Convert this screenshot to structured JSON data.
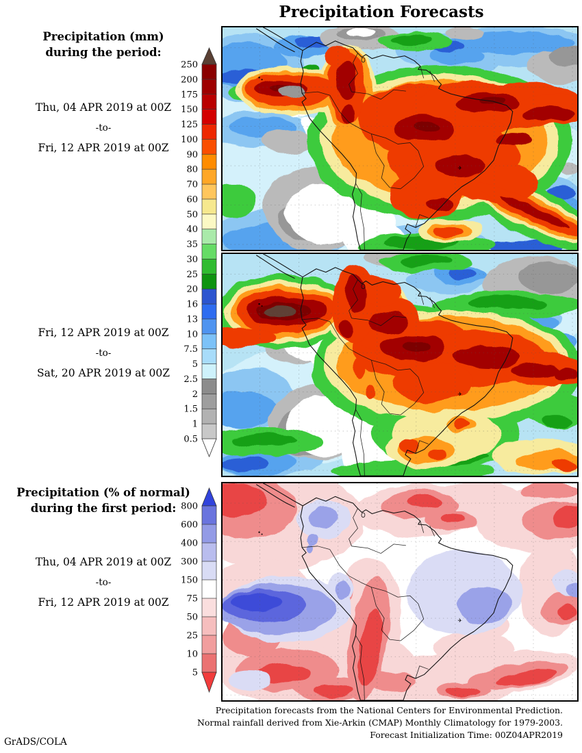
{
  "title": "Precipitation Forecasts",
  "credit": "GrADS/COLA",
  "panel1": {
    "label_line1": "Precipitation (mm)",
    "label_line2": "during the period:",
    "date_from": "Thu, 04 APR 2019 at 00Z",
    "date_sep": "-to-",
    "date_to": "Fri, 12 APR 2019 at 00Z"
  },
  "panel2": {
    "date_from": "Fri, 12 APR 2019 at 00Z",
    "date_sep": "-to-",
    "date_to": "Sat, 20 APR 2019 at 00Z"
  },
  "panel3": {
    "label_line1": "Precipitation (% of normal)",
    "label_line2": "during the first period:",
    "date_from": "Thu, 04 APR 2019 at 00Z",
    "date_sep": "-to-",
    "date_to": "Fri, 12 APR 2019 at 00Z"
  },
  "scale_mm": {
    "cap_top_color": "#5a4034",
    "cap_bottom_color": "#ffffff",
    "ticks": [
      "250",
      "200",
      "175",
      "150",
      "125",
      "100",
      "90",
      "80",
      "70",
      "60",
      "50",
      "40",
      "35",
      "30",
      "25",
      "20",
      "16",
      "13",
      "10",
      "7.5",
      "5",
      "2.5",
      "2",
      "1.5",
      "1",
      "0.5"
    ],
    "segment_colors": [
      "#8a0000",
      "#9e0000",
      "#ba0000",
      "#d40000",
      "#ee2800",
      "#fa4e00",
      "#ff8c00",
      "#ffa726",
      "#ffc65c",
      "#f6e88e",
      "#fcf9c4",
      "#aaeaaa",
      "#66dc66",
      "#30bc30",
      "#0f9410",
      "#2c55d0",
      "#2e6cf0",
      "#4f94f0",
      "#7cc2f8",
      "#a8dcfa",
      "#cef2fc",
      "#8c8c8c",
      "#9e9e9e",
      "#b2b2b2",
      "#c8c8c8"
    ]
  },
  "scale_pct": {
    "cap_top_color": "#3143dc",
    "cap_bottom_color": "#f23c3c",
    "ticks": [
      "800",
      "600",
      "400",
      "300",
      "150",
      "75",
      "50",
      "25",
      "10",
      "5"
    ],
    "segment_colors": [
      "#6a74de",
      "#939be6",
      "#b9bdee",
      "#d9dcf5",
      "#ffffff",
      "#fadede",
      "#f6bebe",
      "#f19e9e",
      "#eb7272"
    ]
  },
  "footer": {
    "line1": "Precipitation forecasts from the National Centers for Environmental Prediction.",
    "line2": "Normal rainfall derived from Xie-Arkin (CMAP) Monthly Climatology for 1979-2003.",
    "line3": "Forecast Initialization Time: 00Z04APR2019"
  }
}
